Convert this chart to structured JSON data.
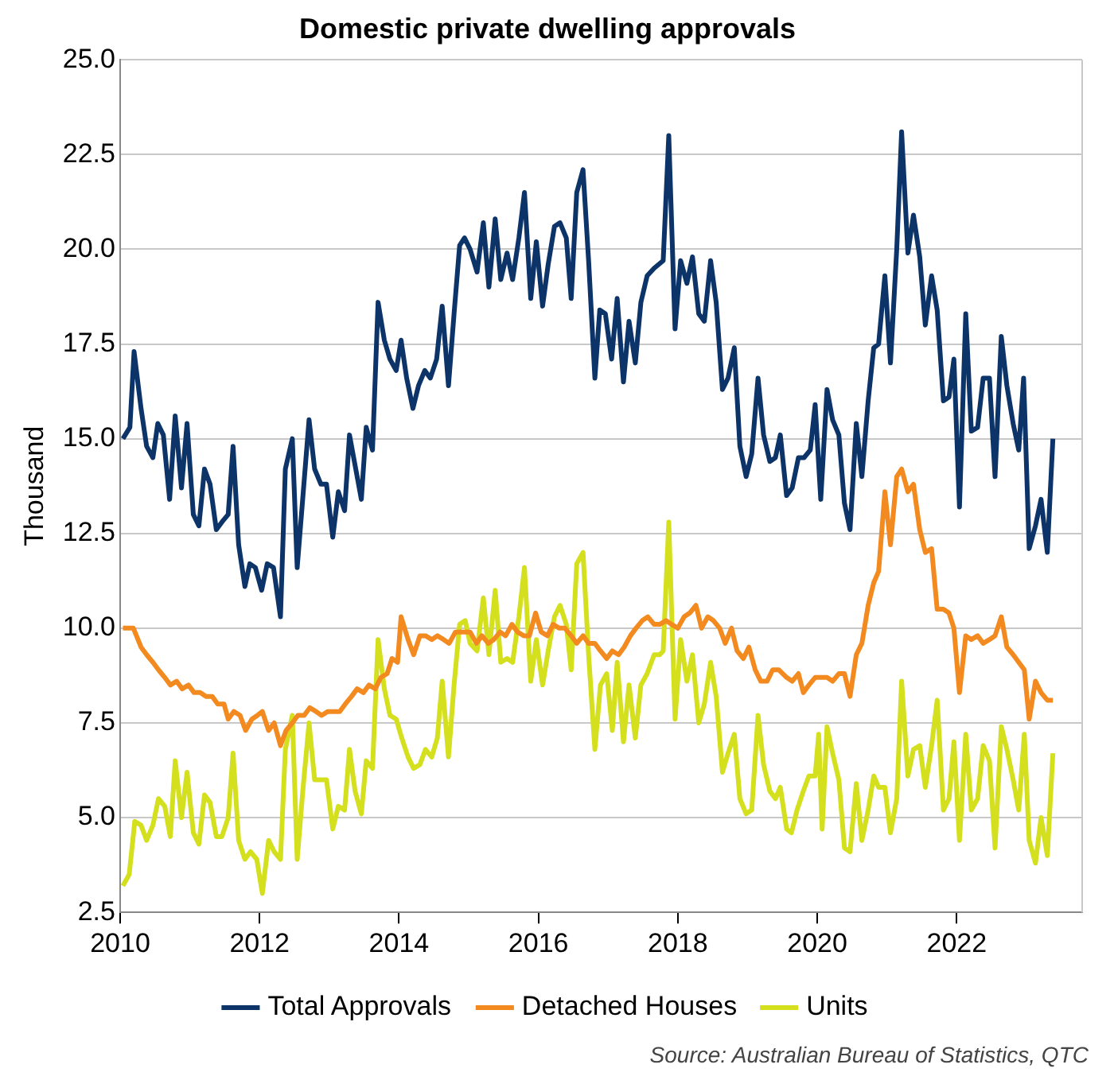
{
  "chart_data": {
    "type": "line",
    "title": "Domestic private dwelling approvals",
    "ylabel": "Thousand",
    "annotations": [
      "Source: Australian Bureau of Statistics, QTC"
    ],
    "xlim": [
      2010,
      2023.8
    ],
    "xticks": [
      2010,
      2012,
      2014,
      2016,
      2018,
      2020,
      2022
    ],
    "ylim": [
      2.5,
      25
    ],
    "yticks": [
      {
        "value": 2.5,
        "label": "2.5"
      },
      {
        "value": 5,
        "label": "5.0"
      },
      {
        "value": 7.5,
        "label": "7.5"
      },
      {
        "value": 10,
        "label": "10.0"
      },
      {
        "value": 12.5,
        "label": "12.5"
      },
      {
        "value": 15,
        "label": "15.0"
      },
      {
        "value": 17.5,
        "label": "17.5"
      },
      {
        "value": 20,
        "label": "20.0"
      },
      {
        "value": 22.5,
        "label": "22.5"
      },
      {
        "value": 25,
        "label": "25.0"
      }
    ],
    "grid": "y",
    "legend": "bottom",
    "series": [
      {
        "name": "Total Approvals",
        "color": "#0d3468",
        "x": [
          2010.04,
          2010.14,
          2010.2,
          2010.3,
          2010.38,
          2010.47,
          2010.54,
          2010.62,
          2010.71,
          2010.79,
          2010.88,
          2010.96,
          2011.05,
          2011.13,
          2011.21,
          2011.29,
          2011.38,
          2011.46,
          2011.55,
          2011.62,
          2011.7,
          2011.79,
          2011.86,
          2011.94,
          2012.03,
          2012.11,
          2012.2,
          2012.3,
          2012.37,
          2012.47,
          2012.54,
          2012.71,
          2012.79,
          2012.88,
          2012.96,
          2013.05,
          2013.13,
          2013.22,
          2013.29,
          2013.37,
          2013.46,
          2013.53,
          2013.62,
          2013.7,
          2013.79,
          2013.87,
          2013.96,
          2014.03,
          2014.11,
          2014.2,
          2014.28,
          2014.37,
          2014.45,
          2014.54,
          2014.62,
          2014.71,
          2014.79,
          2014.87,
          2014.94,
          2015.02,
          2015.12,
          2015.21,
          2015.29,
          2015.38,
          2015.46,
          2015.55,
          2015.63,
          2015.72,
          2015.8,
          2015.89,
          2015.97,
          2016.06,
          2016.14,
          2016.23,
          2016.31,
          2016.4,
          2016.47,
          2016.55,
          2016.64,
          2016.72,
          2016.81,
          2016.88,
          2016.96,
          2017.05,
          2017.13,
          2017.22,
          2017.3,
          2017.39,
          2017.47,
          2017.56,
          2017.66,
          2017.79,
          2017.87,
          2017.96,
          2018.04,
          2018.13,
          2018.21,
          2018.3,
          2018.38,
          2018.47,
          2018.55,
          2018.64,
          2018.72,
          2018.81,
          2018.89,
          2018.98,
          2019.06,
          2019.15,
          2019.23,
          2019.32,
          2019.4,
          2019.47,
          2019.56,
          2019.64,
          2019.73,
          2019.81,
          2019.9,
          2019.97,
          2020.05,
          2020.14,
          2020.22,
          2020.31,
          2020.39,
          2020.47,
          2020.56,
          2020.64,
          2020.73,
          2020.81,
          2020.88,
          2020.97,
          2021.05,
          2021.14,
          2021.21,
          2021.3,
          2021.38,
          2021.47,
          2021.55,
          2021.64,
          2021.72,
          2021.81,
          2021.89,
          2021.96,
          2022.04,
          2022.13,
          2022.21,
          2022.3,
          2022.38,
          2022.47,
          2022.55,
          2022.64,
          2022.72,
          2022.81,
          2022.89,
          2022.96,
          2023.04,
          2023.13,
          2023.21,
          2023.3,
          2023.38
        ],
        "values": [
          15.0,
          15.3,
          17.3,
          15.8,
          14.8,
          14.5,
          15.4,
          15.1,
          13.4,
          15.6,
          13.7,
          15.4,
          13.0,
          12.7,
          14.2,
          13.8,
          12.6,
          12.8,
          13.0,
          14.8,
          12.2,
          11.1,
          11.7,
          11.6,
          11.0,
          11.7,
          11.6,
          10.3,
          14.2,
          15.0,
          11.6,
          15.5,
          14.2,
          13.8,
          13.8,
          12.4,
          13.6,
          13.1,
          15.1,
          14.3,
          13.4,
          15.3,
          14.7,
          18.6,
          17.6,
          17.1,
          16.8,
          17.6,
          16.6,
          15.8,
          16.4,
          16.8,
          16.6,
          17.1,
          18.5,
          16.4,
          18.3,
          20.1,
          20.3,
          20.0,
          19.4,
          20.7,
          19.0,
          20.8,
          19.2,
          19.9,
          19.2,
          20.3,
          21.5,
          18.7,
          20.2,
          18.5,
          19.6,
          20.6,
          20.7,
          20.3,
          18.7,
          21.5,
          22.1,
          19.7,
          16.6,
          18.4,
          18.3,
          17.1,
          18.7,
          16.5,
          18.1,
          17.0,
          18.6,
          19.3,
          19.5,
          19.7,
          23.0,
          17.9,
          19.7,
          19.1,
          19.8,
          18.3,
          18.1,
          19.7,
          18.6,
          16.3,
          16.6,
          17.4,
          14.8,
          14.0,
          14.6,
          16.6,
          15.1,
          14.4,
          14.5,
          15.1,
          13.5,
          13.7,
          14.5,
          14.5,
          14.7,
          15.9,
          13.4,
          16.3,
          15.5,
          15.1,
          13.3,
          12.6,
          15.4,
          14.0,
          16.0,
          17.4,
          17.5,
          19.3,
          17.0,
          20.0,
          23.1,
          19.9,
          20.9,
          19.8,
          18.0,
          19.3,
          18.4,
          16.0,
          16.1,
          17.1,
          13.2,
          18.3,
          15.2,
          15.3,
          16.6,
          16.6,
          14.0,
          17.7,
          16.4,
          15.4,
          14.7,
          16.6,
          12.1,
          12.7,
          13.4,
          12.0,
          15.0
        ]
      },
      {
        "name": "Detached Houses",
        "color": "#f28a1f",
        "x": [
          2010.04,
          2010.19,
          2010.3,
          2010.38,
          2010.47,
          2010.55,
          2010.64,
          2010.72,
          2010.81,
          2010.89,
          2010.98,
          2011.06,
          2011.15,
          2011.23,
          2011.32,
          2011.4,
          2011.49,
          2011.55,
          2011.63,
          2011.72,
          2011.8,
          2011.89,
          2011.97,
          2012.04,
          2012.13,
          2012.21,
          2012.3,
          2012.38,
          2012.47,
          2012.55,
          2012.64,
          2012.72,
          2012.81,
          2012.89,
          2012.98,
          2013.06,
          2013.15,
          2013.23,
          2013.32,
          2013.4,
          2013.49,
          2013.57,
          2013.66,
          2013.74,
          2013.83,
          2013.9,
          2013.98,
          2014.03,
          2014.13,
          2014.21,
          2014.3,
          2014.38,
          2014.47,
          2014.55,
          2014.64,
          2014.72,
          2014.81,
          2014.94,
          2015.02,
          2015.11,
          2015.19,
          2015.28,
          2015.36,
          2015.45,
          2015.53,
          2015.62,
          2015.7,
          2015.79,
          2015.87,
          2015.96,
          2016.04,
          2016.13,
          2016.21,
          2016.3,
          2016.38,
          2016.47,
          2016.55,
          2016.64,
          2016.72,
          2016.81,
          2016.89,
          2016.98,
          2017.06,
          2017.15,
          2017.23,
          2017.32,
          2017.4,
          2017.49,
          2017.57,
          2017.66,
          2017.74,
          2017.83,
          2017.91,
          2018.0,
          2018.09,
          2018.17,
          2018.26,
          2018.34,
          2018.43,
          2018.51,
          2018.6,
          2018.68,
          2018.77,
          2018.85,
          2018.94,
          2019.02,
          2019.11,
          2019.19,
          2019.28,
          2019.36,
          2019.45,
          2019.56,
          2019.64,
          2019.73,
          2019.8,
          2019.88,
          2019.97,
          2020.05,
          2020.14,
          2020.22,
          2020.31,
          2020.39,
          2020.47,
          2020.56,
          2020.64,
          2020.73,
          2020.81,
          2020.88,
          2020.97,
          2021.05,
          2021.14,
          2021.21,
          2021.3,
          2021.38,
          2021.47,
          2021.55,
          2021.64,
          2021.72,
          2021.81,
          2021.89,
          2021.96,
          2022.04,
          2022.13,
          2022.21,
          2022.3,
          2022.38,
          2022.47,
          2022.55,
          2022.64,
          2022.72,
          2022.81,
          2022.89,
          2022.97,
          2023.04,
          2023.13,
          2023.21,
          2023.3,
          2023.38
        ],
        "values": [
          10.0,
          10.0,
          9.5,
          9.3,
          9.1,
          8.9,
          8.7,
          8.5,
          8.6,
          8.4,
          8.5,
          8.3,
          8.3,
          8.2,
          8.2,
          8.0,
          8.0,
          7.6,
          7.8,
          7.7,
          7.3,
          7.6,
          7.7,
          7.8,
          7.3,
          7.5,
          6.9,
          7.3,
          7.5,
          7.7,
          7.7,
          7.9,
          7.8,
          7.7,
          7.8,
          7.8,
          7.8,
          8.0,
          8.2,
          8.4,
          8.3,
          8.5,
          8.4,
          8.7,
          8.8,
          9.2,
          9.1,
          10.3,
          9.7,
          9.3,
          9.8,
          9.8,
          9.7,
          9.8,
          9.7,
          9.6,
          9.9,
          9.9,
          9.9,
          9.6,
          9.8,
          9.6,
          9.7,
          9.9,
          9.8,
          10.1,
          9.9,
          9.8,
          9.8,
          10.4,
          9.9,
          9.8,
          10.1,
          10.0,
          10.0,
          9.8,
          9.6,
          9.8,
          9.6,
          9.6,
          9.4,
          9.2,
          9.4,
          9.3,
          9.5,
          9.8,
          10.0,
          10.2,
          10.3,
          10.1,
          10.1,
          10.2,
          10.1,
          10.0,
          10.3,
          10.4,
          10.6,
          10.0,
          10.3,
          10.2,
          10.0,
          9.6,
          10.0,
          9.4,
          9.2,
          9.5,
          8.9,
          8.6,
          8.6,
          8.9,
          8.9,
          8.7,
          8.6,
          8.8,
          8.3,
          8.5,
          8.7,
          8.7,
          8.7,
          8.6,
          8.8,
          8.8,
          8.2,
          9.3,
          9.6,
          10.6,
          11.2,
          11.5,
          13.6,
          12.2,
          14.0,
          14.2,
          13.6,
          13.8,
          12.6,
          12.0,
          12.1,
          10.5,
          10.5,
          10.4,
          10.0,
          8.3,
          9.8,
          9.7,
          9.8,
          9.6,
          9.7,
          9.8,
          10.3,
          9.5,
          9.3,
          9.1,
          8.9,
          7.6,
          8.6,
          8.3,
          8.1,
          8.1
        ]
      },
      {
        "name": "Units",
        "color": "#d4df1e",
        "x": [
          2010.04,
          2010.13,
          2010.21,
          2010.3,
          2010.38,
          2010.47,
          2010.55,
          2010.64,
          2010.72,
          2010.79,
          2010.88,
          2010.96,
          2011.05,
          2011.13,
          2011.21,
          2011.29,
          2011.38,
          2011.46,
          2011.55,
          2011.62,
          2011.7,
          2011.79,
          2011.87,
          2011.96,
          2012.04,
          2012.13,
          2012.21,
          2012.3,
          2012.37,
          2012.47,
          2012.54,
          2012.62,
          2012.71,
          2012.79,
          2012.88,
          2012.96,
          2013.05,
          2013.13,
          2013.22,
          2013.29,
          2013.37,
          2013.46,
          2013.53,
          2013.62,
          2013.7,
          2013.79,
          2013.87,
          2013.96,
          2014.04,
          2014.13,
          2014.21,
          2014.3,
          2014.38,
          2014.47,
          2014.55,
          2014.62,
          2014.71,
          2014.79,
          2014.87,
          2014.95,
          2015.02,
          2015.12,
          2015.21,
          2015.29,
          2015.38,
          2015.46,
          2015.55,
          2015.63,
          2015.72,
          2015.8,
          2015.89,
          2015.97,
          2016.06,
          2016.14,
          2016.23,
          2016.31,
          2016.4,
          2016.47,
          2016.55,
          2016.64,
          2016.72,
          2016.81,
          2016.89,
          2016.98,
          2017.06,
          2017.13,
          2017.22,
          2017.3,
          2017.39,
          2017.47,
          2017.56,
          2017.66,
          2017.74,
          2017.79,
          2017.87,
          2017.96,
          2018.04,
          2018.13,
          2018.21,
          2018.3,
          2018.38,
          2018.47,
          2018.55,
          2018.64,
          2018.72,
          2018.81,
          2018.89,
          2018.98,
          2019.06,
          2019.15,
          2019.23,
          2019.32,
          2019.4,
          2019.47,
          2019.56,
          2019.63,
          2019.71,
          2019.8,
          2019.88,
          2019.97,
          2020.02,
          2020.07,
          2020.14,
          2020.22,
          2020.31,
          2020.39,
          2020.47,
          2020.56,
          2020.64,
          2020.73,
          2020.81,
          2020.88,
          2020.97,
          2021.05,
          2021.14,
          2021.21,
          2021.3,
          2021.38,
          2021.47,
          2021.55,
          2021.64,
          2021.72,
          2021.81,
          2021.89,
          2021.96,
          2022.04,
          2022.13,
          2022.21,
          2022.3,
          2022.38,
          2022.47,
          2022.55,
          2022.64,
          2022.72,
          2022.81,
          2022.89,
          2022.97,
          2023.04,
          2023.13,
          2023.21,
          2023.3,
          2023.38
        ],
        "values": [
          3.2,
          3.5,
          4.9,
          4.8,
          4.4,
          4.8,
          5.5,
          5.3,
          4.5,
          6.5,
          5.0,
          6.2,
          4.6,
          4.3,
          5.6,
          5.4,
          4.5,
          4.5,
          5.0,
          6.7,
          4.4,
          3.9,
          4.1,
          3.9,
          3.0,
          4.4,
          4.1,
          3.9,
          6.8,
          7.7,
          3.9,
          5.7,
          7.5,
          6.0,
          6.0,
          6.0,
          4.7,
          5.3,
          5.2,
          6.8,
          5.7,
          5.1,
          6.5,
          6.3,
          9.7,
          8.4,
          7.7,
          7.6,
          7.1,
          6.6,
          6.3,
          6.4,
          6.8,
          6.6,
          7.1,
          8.6,
          6.6,
          8.5,
          10.1,
          10.2,
          9.6,
          9.4,
          10.8,
          9.3,
          11.0,
          9.1,
          9.2,
          9.1,
          10.3,
          11.6,
          8.6,
          9.7,
          8.5,
          9.4,
          10.3,
          10.6,
          10.1,
          8.9,
          11.7,
          12.0,
          9.3,
          6.8,
          8.5,
          8.8,
          7.3,
          9.1,
          7.0,
          8.5,
          7.1,
          8.5,
          8.8,
          9.3,
          9.3,
          9.4,
          12.8,
          7.6,
          9.7,
          8.6,
          9.3,
          7.5,
          8.0,
          9.1,
          8.2,
          6.2,
          6.7,
          7.2,
          5.5,
          5.1,
          5.2,
          7.7,
          6.4,
          5.7,
          5.5,
          5.8,
          4.7,
          4.6,
          5.2,
          5.7,
          6.1,
          6.1,
          7.2,
          4.7,
          7.4,
          6.7,
          6.0,
          4.2,
          4.1,
          5.9,
          4.4,
          5.2,
          6.1,
          5.8,
          5.8,
          4.6,
          5.5,
          8.6,
          6.1,
          6.8,
          6.9,
          5.8,
          6.9,
          8.1,
          5.2,
          5.5,
          7.0,
          4.4,
          7.2,
          5.2,
          5.5,
          6.9,
          6.5,
          4.2,
          7.4,
          6.8,
          6.0,
          5.2,
          7.2,
          4.4,
          3.8,
          5.0,
          4.0,
          6.7
        ]
      }
    ]
  }
}
